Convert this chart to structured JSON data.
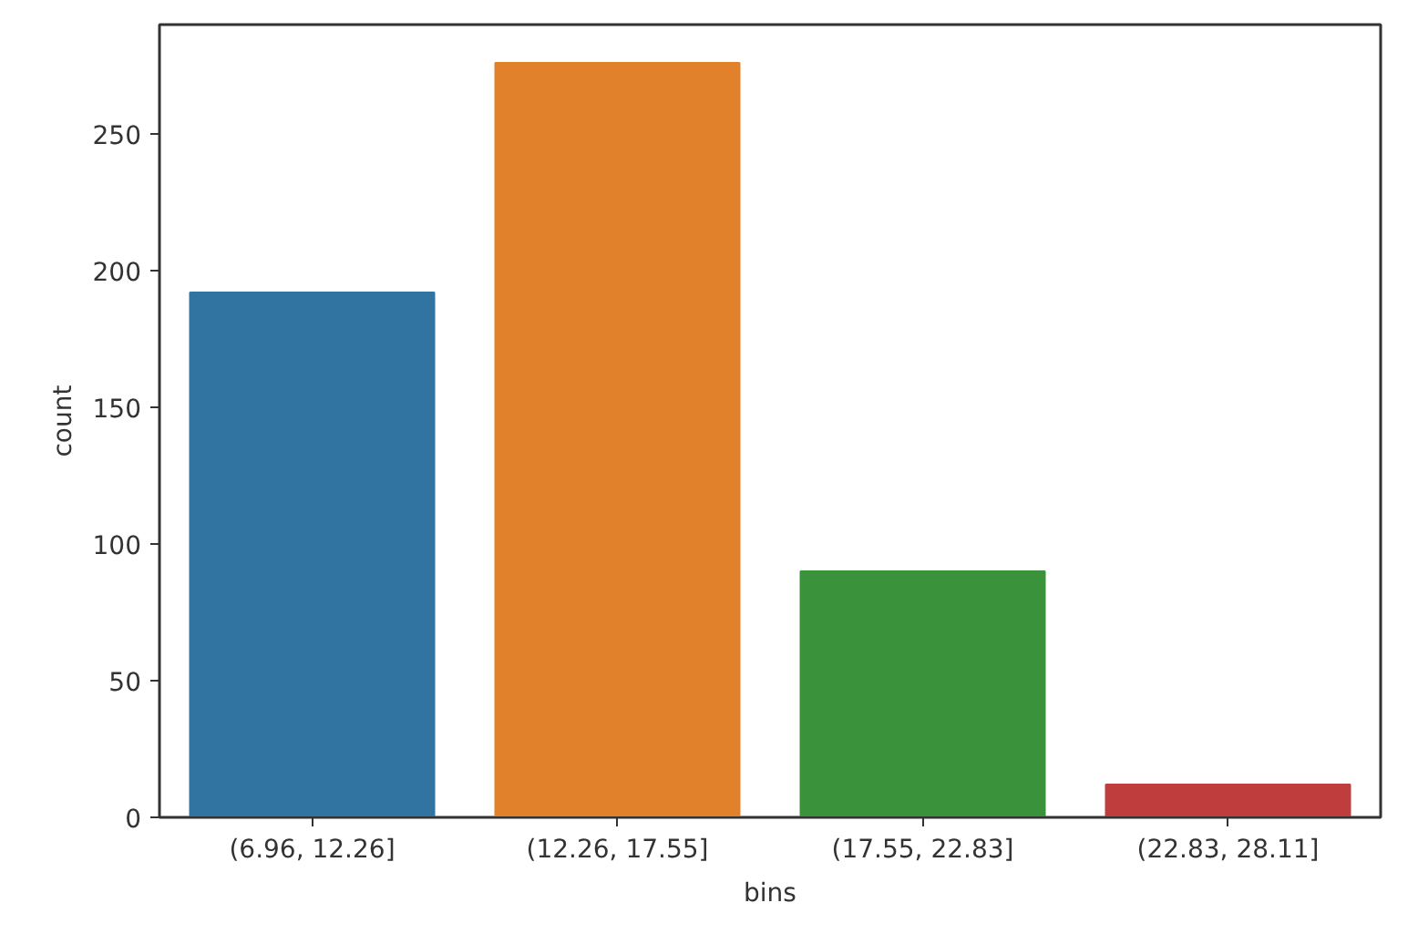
{
  "chart_data": {
    "type": "bar",
    "xlabel": "bins",
    "ylabel": "count",
    "categories": [
      "(6.96, 12.26]",
      "(12.26, 17.55]",
      "(17.55, 22.83]",
      "(22.83, 28.11]"
    ],
    "values": [
      192,
      276,
      90,
      12
    ],
    "colors": [
      "#3274a1",
      "#e1812c",
      "#3a923a",
      "#c03d3e"
    ],
    "ylim": [
      0,
      290
    ],
    "yticks": [
      0,
      50,
      100,
      150,
      200,
      250
    ],
    "grid": false
  }
}
